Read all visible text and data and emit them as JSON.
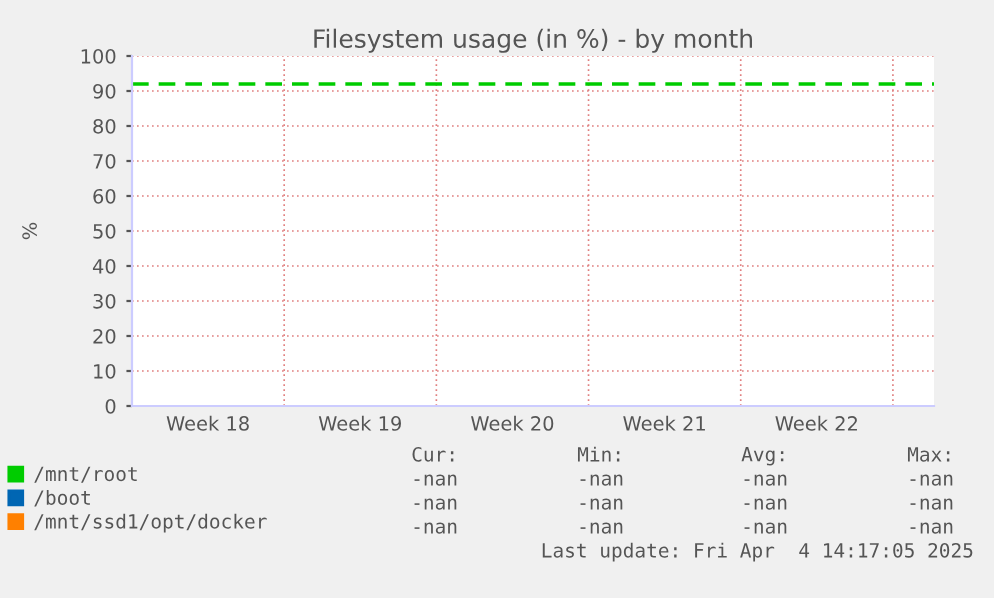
{
  "chart_data": {
    "type": "line",
    "title": "Filesystem usage (in %) - by month",
    "ylabel": "%",
    "categories": [
      "Week 18",
      "Week 19",
      "Week 20",
      "Week 21",
      "Week 22"
    ],
    "series": [
      {
        "name": "/mnt/root",
        "color": "#00cc00",
        "values": [
          null,
          null,
          null,
          null,
          null
        ]
      },
      {
        "name": "/boot",
        "color": "#0066b3",
        "values": [
          null,
          null,
          null,
          null,
          null
        ]
      },
      {
        "name": "/mnt/ssd1/opt/docker",
        "color": "#ff8000",
        "values": [
          null,
          null,
          null,
          null,
          null
        ]
      }
    ],
    "ylim": [
      0,
      100
    ],
    "yticks": [
      0,
      10,
      20,
      30,
      40,
      50,
      60,
      70,
      80,
      90,
      100
    ],
    "ref_lines": [
      {
        "axis": "y",
        "value": 92,
        "label": null,
        "color": "#00cc00",
        "line_style": "dashed"
      }
    ],
    "grid": true,
    "legend": "bottom",
    "annotations": [
      "Cur:",
      "Min:",
      "Avg:",
      "Max:",
      "-nan",
      "-nan",
      "-nan",
      "-nan",
      "-nan",
      "-nan",
      "-nan",
      "-nan",
      "-nan",
      "-nan",
      "-nan",
      "-nan",
      "Last update: Fri Apr  4 14:17:05 2025"
    ]
  }
}
